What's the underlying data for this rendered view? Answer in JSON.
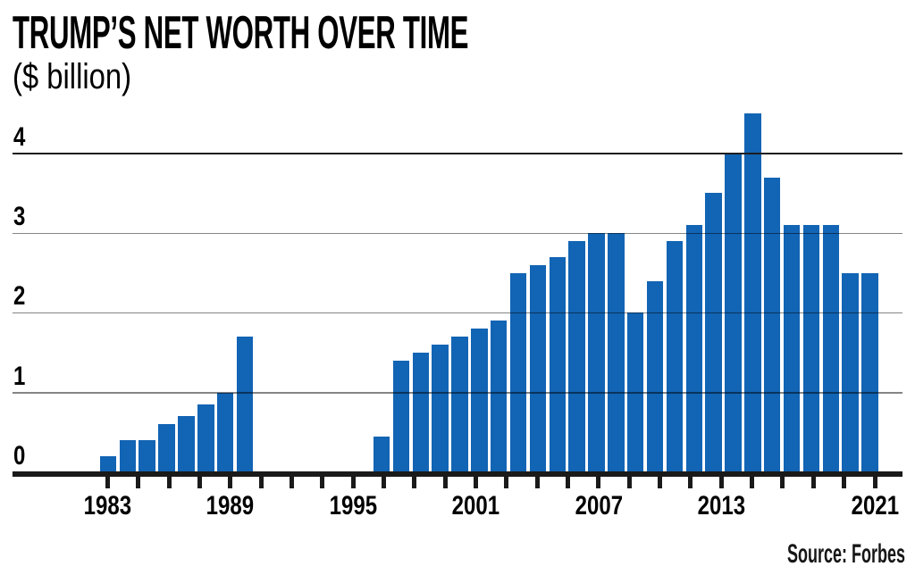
{
  "title": "TRUMP’S NET WORTH OVER TIME",
  "subtitle": "($ billion)",
  "source_credit": "Source: Forbes",
  "colors": {
    "bar_blue": "#1264b4",
    "text_black": "#000000",
    "axis_black": "#1a1a1a",
    "gridline_gray": "#5a5a5a",
    "top_gridline_dark": "#1d1d1d",
    "background": "#ffffff"
  },
  "chart_data": {
    "type": "bar",
    "title": "TRUMP'S NET WORTH OVER TIME",
    "subtitle_unit": "($ billion)",
    "xlabel": "",
    "ylabel": "$ billion",
    "x": [
      1982,
      1983,
      1984,
      1985,
      1986,
      1987,
      1988,
      1989,
      1996,
      1997,
      1998,
      1999,
      2000,
      2001,
      2002,
      2003,
      2004,
      2005,
      2006,
      2007,
      2008,
      2009,
      2010,
      2011,
      2012,
      2013,
      2014,
      2015,
      2016,
      2017,
      2018,
      2019,
      2020,
      2021
    ],
    "values": [
      0.2,
      0.4,
      0.4,
      0.6,
      0.7,
      0.85,
      1.0,
      1.7,
      0.45,
      1.4,
      1.5,
      1.6,
      1.7,
      1.8,
      1.9,
      2.5,
      2.6,
      2.7,
      2.9,
      3.0,
      3.0,
      2.0,
      2.4,
      2.9,
      3.1,
      3.5,
      4.0,
      4.5,
      3.7,
      3.1,
      3.1,
      3.1,
      2.5,
      2.5
    ],
    "missing_years": [
      1990,
      1991,
      1992,
      1993,
      1994,
      1995
    ],
    "y_ticks": [
      "0",
      "1",
      "2",
      "3",
      "4"
    ],
    "ylim": [
      0,
      4.7
    ],
    "x_tick_count": 26,
    "x_tick_labels": [
      "1983",
      "1989",
      "1995",
      "2001",
      "2007",
      "2013",
      "2021"
    ],
    "x_tick_label_indices": [
      0,
      4,
      8,
      12,
      16,
      20,
      25
    ],
    "grid": true,
    "legend": "none",
    "bar_color": "#1264b4",
    "source": "Source: Forbes"
  }
}
